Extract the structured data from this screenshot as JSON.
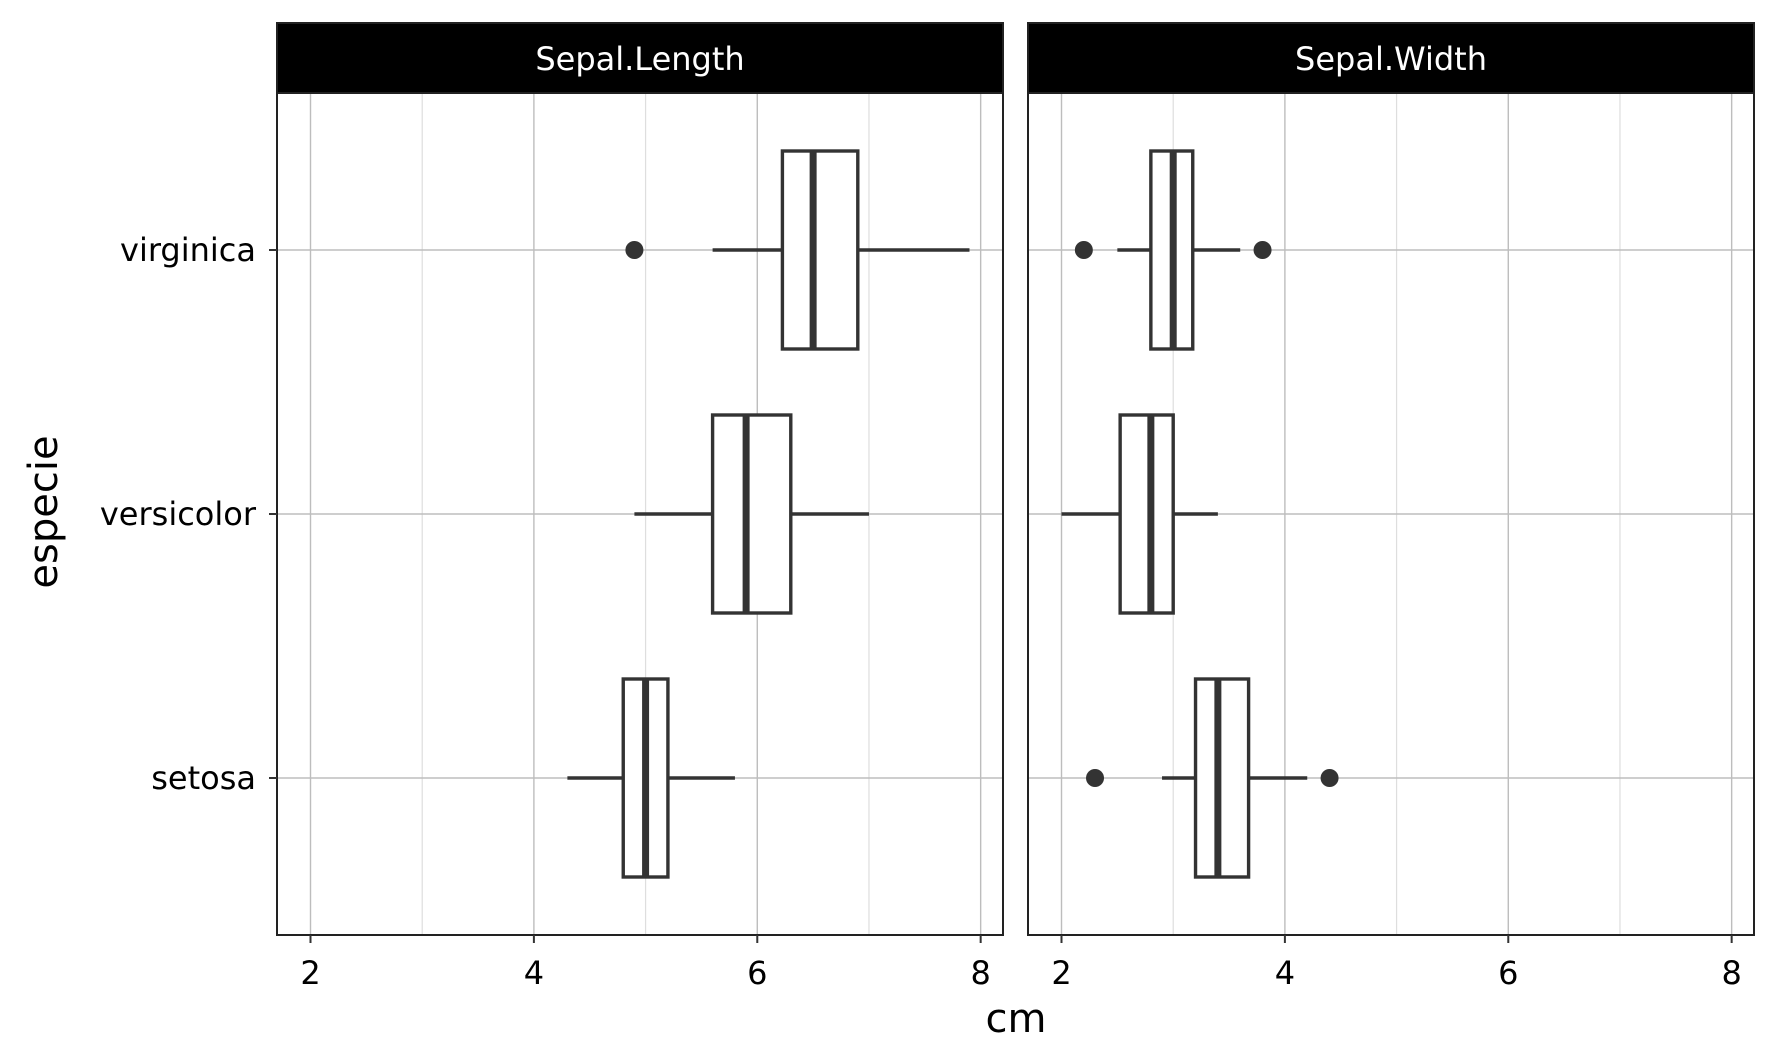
{
  "chart_data": {
    "type": "boxplot",
    "xlabel": "cm",
    "ylabel": "especie",
    "xlim": [
      1.7,
      8.2
    ],
    "x_ticks": [
      "2",
      "4",
      "6",
      "8"
    ],
    "categories": [
      "setosa",
      "versicolor",
      "virginica"
    ],
    "grid": true,
    "facets": [
      {
        "title": "Sepal.Length",
        "boxes": [
          {
            "category": "setosa",
            "whisker_low": 4.3,
            "q1": 4.8,
            "median": 5.0,
            "q3": 5.2,
            "whisker_high": 5.8,
            "outliers": []
          },
          {
            "category": "versicolor",
            "whisker_low": 4.9,
            "q1": 5.6,
            "median": 5.9,
            "q3": 6.3,
            "whisker_high": 7.0,
            "outliers": []
          },
          {
            "category": "virginica",
            "whisker_low": 5.6,
            "q1": 6.225,
            "median": 6.5,
            "q3": 6.9,
            "whisker_high": 7.9,
            "outliers": [
              4.9
            ]
          }
        ]
      },
      {
        "title": "Sepal.Width",
        "boxes": [
          {
            "category": "setosa",
            "whisker_low": 2.9,
            "q1": 3.2,
            "median": 3.4,
            "q3": 3.675,
            "whisker_high": 4.2,
            "outliers": [
              2.3,
              4.4
            ]
          },
          {
            "category": "versicolor",
            "whisker_low": 2.0,
            "q1": 2.525,
            "median": 2.8,
            "q3": 3.0,
            "whisker_high": 3.4,
            "outliers": []
          },
          {
            "category": "virginica",
            "whisker_low": 2.5,
            "q1": 2.8,
            "median": 3.0,
            "q3": 3.175,
            "whisker_high": 3.6,
            "outliers": [
              2.2,
              3.8
            ]
          }
        ]
      }
    ]
  }
}
